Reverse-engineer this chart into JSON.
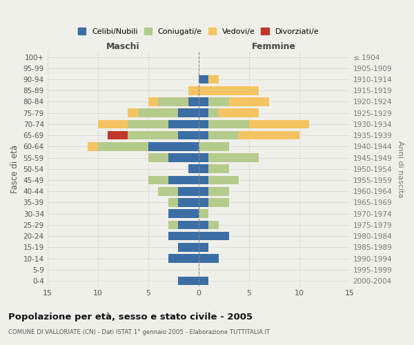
{
  "age_groups": [
    "100+",
    "95-99",
    "90-94",
    "85-89",
    "80-84",
    "75-79",
    "70-74",
    "65-69",
    "60-64",
    "55-59",
    "50-54",
    "45-49",
    "40-44",
    "35-39",
    "30-34",
    "25-29",
    "20-24",
    "15-19",
    "10-14",
    "5-9",
    "0-4"
  ],
  "birth_years": [
    "≤ 1904",
    "1905-1909",
    "1910-1914",
    "1915-1919",
    "1920-1924",
    "1925-1929",
    "1930-1934",
    "1935-1939",
    "1940-1944",
    "1945-1949",
    "1950-1954",
    "1955-1959",
    "1960-1964",
    "1965-1969",
    "1970-1974",
    "1975-1979",
    "1980-1984",
    "1985-1989",
    "1990-1994",
    "1995-1999",
    "2000-2004"
  ],
  "male_celibi": [
    0,
    0,
    0,
    0,
    1,
    2,
    3,
    2,
    5,
    3,
    1,
    3,
    2,
    2,
    3,
    2,
    3,
    2,
    3,
    0,
    2
  ],
  "male_coniugati": [
    0,
    0,
    0,
    0,
    3,
    4,
    4,
    5,
    5,
    2,
    0,
    2,
    2,
    1,
    0,
    1,
    0,
    0,
    0,
    0,
    0
  ],
  "male_vedovi": [
    0,
    0,
    0,
    1,
    1,
    1,
    3,
    0,
    1,
    0,
    0,
    0,
    0,
    0,
    0,
    0,
    0,
    0,
    0,
    0,
    0
  ],
  "male_divorziati": [
    0,
    0,
    0,
    0,
    0,
    0,
    0,
    2,
    0,
    0,
    0,
    0,
    0,
    0,
    0,
    0,
    0,
    0,
    0,
    0,
    0
  ],
  "female_celibi": [
    0,
    0,
    1,
    0,
    1,
    1,
    1,
    1,
    0,
    1,
    1,
    1,
    1,
    1,
    0,
    1,
    3,
    1,
    2,
    0,
    1
  ],
  "female_coniugati": [
    0,
    0,
    0,
    0,
    2,
    1,
    4,
    3,
    3,
    5,
    2,
    3,
    2,
    2,
    1,
    1,
    0,
    0,
    0,
    0,
    0
  ],
  "female_vedovi": [
    0,
    0,
    1,
    6,
    4,
    4,
    6,
    6,
    0,
    0,
    0,
    0,
    0,
    0,
    0,
    0,
    0,
    0,
    0,
    0,
    0
  ],
  "female_divorziati": [
    0,
    0,
    0,
    0,
    0,
    0,
    0,
    0,
    0,
    0,
    0,
    0,
    0,
    0,
    0,
    0,
    0,
    0,
    0,
    0,
    0
  ],
  "color_celibi": "#3b6ea5",
  "color_coniugati": "#b5cb8b",
  "color_vedovi": "#f5c462",
  "color_divorziati": "#c0392b",
  "title": "Popolazione per età, sesso e stato civile - 2005",
  "subtitle": "COMUNE DI VALLORIATE (CN) - Dati ISTAT 1° gennaio 2005 - Elaborazione TUTTITALIA.IT",
  "xlabel_left": "Maschi",
  "xlabel_right": "Femmine",
  "ylabel_left": "Fasce di età",
  "ylabel_right": "Anni di nascita",
  "xlim": 15,
  "background_color": "#f0f0eb",
  "legend_labels": [
    "Celibi/Nubili",
    "Coniugati/e",
    "Vedovi/e",
    "Divorziati/e"
  ]
}
